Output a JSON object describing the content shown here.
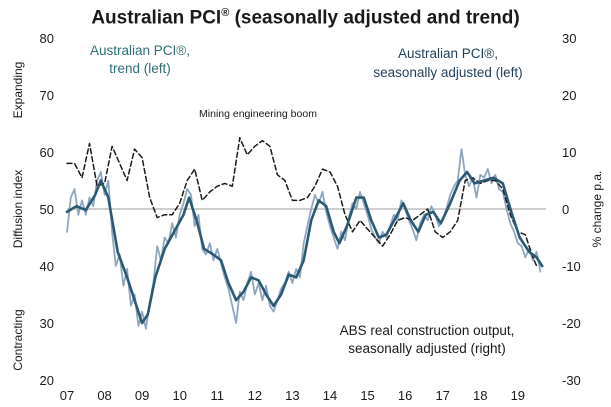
{
  "chart_data": {
    "type": "line",
    "title": "Australian PCI",
    "title_mark": "®",
    "title_suffix": " (seasonally adjusted and trend)",
    "left_axis": {
      "label": "Diffusion index",
      "ylim": [
        20,
        80
      ],
      "ticks": [
        "20",
        "30",
        "40",
        "50",
        "60",
        "70",
        "80"
      ],
      "upper_note": "Expanding",
      "lower_note": "Contracting"
    },
    "right_axis": {
      "label": "% change p.a.",
      "ylim": [
        -30,
        30
      ],
      "ticks": [
        "-30",
        "-20",
        "-10",
        "0",
        "10",
        "20",
        "30"
      ]
    },
    "x_ticks": [
      "07",
      "08",
      "09",
      "10",
      "11",
      "12",
      "13",
      "14",
      "15",
      "16",
      "17",
      "18",
      "19"
    ],
    "xlim": [
      2007.0,
      2019.75
    ],
    "reference_line": 50,
    "grid": false,
    "colors": {
      "trend": "#2a5a73",
      "seasonally_adjusted": "#8fa6c1",
      "construction_output": "#1a1a1a",
      "reference_line": "#b0b0b0"
    },
    "series": [
      {
        "name": "Australian PCI®, trend (left)",
        "axis": "left",
        "style": "solid",
        "points": [
          [
            2007.0,
            49.5
          ],
          [
            2007.25,
            50.5
          ],
          [
            2007.5,
            49.8
          ],
          [
            2007.75,
            52.5
          ],
          [
            2007.9,
            55.0
          ],
          [
            2008.1,
            52.0
          ],
          [
            2008.35,
            42.5
          ],
          [
            2008.6,
            38.0
          ],
          [
            2008.85,
            33.0
          ],
          [
            2009.0,
            30.0
          ],
          [
            2009.15,
            31.5
          ],
          [
            2009.35,
            38.0
          ],
          [
            2009.6,
            43.0
          ],
          [
            2009.85,
            46.0
          ],
          [
            2010.1,
            49.0
          ],
          [
            2010.25,
            52.0
          ],
          [
            2010.45,
            48.0
          ],
          [
            2010.65,
            43.0
          ],
          [
            2010.9,
            42.0
          ],
          [
            2011.1,
            41.0
          ],
          [
            2011.3,
            37.0
          ],
          [
            2011.5,
            34.0
          ],
          [
            2011.7,
            35.5
          ],
          [
            2011.9,
            38.0
          ],
          [
            2012.1,
            37.5
          ],
          [
            2012.3,
            35.0
          ],
          [
            2012.5,
            33.0
          ],
          [
            2012.7,
            35.0
          ],
          [
            2012.9,
            38.5
          ],
          [
            2013.1,
            38.0
          ],
          [
            2013.3,
            41.0
          ],
          [
            2013.5,
            48.0
          ],
          [
            2013.7,
            51.5
          ],
          [
            2013.9,
            50.5
          ],
          [
            2014.1,
            46.0
          ],
          [
            2014.25,
            44.0
          ],
          [
            2014.45,
            47.0
          ],
          [
            2014.7,
            52.0
          ],
          [
            2014.9,
            52.0
          ],
          [
            2015.1,
            48.0
          ],
          [
            2015.3,
            45.0
          ],
          [
            2015.5,
            45.5
          ],
          [
            2015.75,
            48.5
          ],
          [
            2015.95,
            51.0
          ],
          [
            2016.15,
            48.0
          ],
          [
            2016.35,
            46.0
          ],
          [
            2016.55,
            49.0
          ],
          [
            2016.75,
            49.5
          ],
          [
            2016.95,
            47.5
          ],
          [
            2017.2,
            51.0
          ],
          [
            2017.45,
            55.0
          ],
          [
            2017.65,
            56.5
          ],
          [
            2017.85,
            54.5
          ],
          [
            2018.1,
            55.0
          ],
          [
            2018.35,
            55.5
          ],
          [
            2018.6,
            54.5
          ],
          [
            2018.85,
            49.0
          ],
          [
            2019.05,
            45.0
          ],
          [
            2019.3,
            42.5
          ],
          [
            2019.5,
            41.5
          ],
          [
            2019.65,
            40.0
          ]
        ]
      },
      {
        "name": "Australian PCI®, seasonally adjusted (left)",
        "axis": "left",
        "style": "solid",
        "points": [
          [
            2007.0,
            46.0
          ],
          [
            2007.1,
            52.0
          ],
          [
            2007.2,
            53.5
          ],
          [
            2007.3,
            49.0
          ],
          [
            2007.4,
            51.5
          ],
          [
            2007.5,
            49.0
          ],
          [
            2007.6,
            52.0
          ],
          [
            2007.7,
            50.5
          ],
          [
            2007.8,
            55.0
          ],
          [
            2007.9,
            56.5
          ],
          [
            2008.0,
            52.5
          ],
          [
            2008.1,
            55.0
          ],
          [
            2008.2,
            46.0
          ],
          [
            2008.3,
            40.0
          ],
          [
            2008.4,
            42.0
          ],
          [
            2008.5,
            36.5
          ],
          [
            2008.6,
            39.5
          ],
          [
            2008.7,
            33.0
          ],
          [
            2008.8,
            35.0
          ],
          [
            2008.9,
            29.5
          ],
          [
            2009.0,
            32.0
          ],
          [
            2009.1,
            29.0
          ],
          [
            2009.2,
            33.5
          ],
          [
            2009.3,
            37.0
          ],
          [
            2009.4,
            43.5
          ],
          [
            2009.5,
            41.0
          ],
          [
            2009.6,
            45.0
          ],
          [
            2009.7,
            44.0
          ],
          [
            2009.8,
            47.5
          ],
          [
            2009.9,
            45.0
          ],
          [
            2010.0,
            49.0
          ],
          [
            2010.1,
            51.0
          ],
          [
            2010.2,
            53.5
          ],
          [
            2010.3,
            52.5
          ],
          [
            2010.4,
            47.0
          ],
          [
            2010.5,
            49.0
          ],
          [
            2010.6,
            43.0
          ],
          [
            2010.7,
            42.0
          ],
          [
            2010.8,
            44.0
          ],
          [
            2010.9,
            41.0
          ],
          [
            2011.0,
            43.0
          ],
          [
            2011.1,
            40.5
          ],
          [
            2011.2,
            38.0
          ],
          [
            2011.3,
            36.0
          ],
          [
            2011.4,
            33.0
          ],
          [
            2011.5,
            30.0
          ],
          [
            2011.6,
            35.5
          ],
          [
            2011.7,
            34.0
          ],
          [
            2011.8,
            37.0
          ],
          [
            2011.9,
            39.0
          ],
          [
            2012.0,
            35.0
          ],
          [
            2012.1,
            37.0
          ],
          [
            2012.2,
            34.0
          ],
          [
            2012.3,
            36.5
          ],
          [
            2012.4,
            33.0
          ],
          [
            2012.5,
            32.0
          ],
          [
            2012.6,
            34.0
          ],
          [
            2012.7,
            36.0
          ],
          [
            2012.8,
            37.0
          ],
          [
            2012.9,
            39.0
          ],
          [
            2013.0,
            37.0
          ],
          [
            2013.1,
            39.5
          ],
          [
            2013.2,
            38.0
          ],
          [
            2013.3,
            44.0
          ],
          [
            2013.4,
            47.0
          ],
          [
            2013.5,
            50.0
          ],
          [
            2013.6,
            52.5
          ],
          [
            2013.7,
            51.0
          ],
          [
            2013.8,
            53.0
          ],
          [
            2013.9,
            49.5
          ],
          [
            2014.0,
            47.0
          ],
          [
            2014.1,
            45.0
          ],
          [
            2014.2,
            43.0
          ],
          [
            2014.3,
            46.0
          ],
          [
            2014.4,
            44.5
          ],
          [
            2014.5,
            48.5
          ],
          [
            2014.6,
            51.0
          ],
          [
            2014.7,
            50.0
          ],
          [
            2014.8,
            53.0
          ],
          [
            2014.9,
            51.0
          ],
          [
            2015.0,
            49.0
          ],
          [
            2015.1,
            46.5
          ],
          [
            2015.2,
            45.0
          ],
          [
            2015.3,
            44.0
          ],
          [
            2015.4,
            46.0
          ],
          [
            2015.5,
            45.0
          ],
          [
            2015.6,
            47.0
          ],
          [
            2015.7,
            49.0
          ],
          [
            2015.8,
            48.0
          ],
          [
            2015.9,
            51.5
          ],
          [
            2016.0,
            50.0
          ],
          [
            2016.1,
            48.0
          ],
          [
            2016.2,
            46.5
          ],
          [
            2016.3,
            44.5
          ],
          [
            2016.4,
            47.5
          ],
          [
            2016.5,
            49.0
          ],
          [
            2016.6,
            48.0
          ],
          [
            2016.7,
            50.5
          ],
          [
            2016.8,
            49.0
          ],
          [
            2016.9,
            47.0
          ],
          [
            2017.0,
            48.0
          ],
          [
            2017.1,
            50.0
          ],
          [
            2017.2,
            52.5
          ],
          [
            2017.3,
            54.0
          ],
          [
            2017.4,
            55.0
          ],
          [
            2017.5,
            60.5
          ],
          [
            2017.6,
            56.0
          ],
          [
            2017.7,
            54.0
          ],
          [
            2017.8,
            55.5
          ],
          [
            2017.9,
            52.0
          ],
          [
            2018.0,
            56.0
          ],
          [
            2018.1,
            55.5
          ],
          [
            2018.2,
            57.0
          ],
          [
            2018.3,
            54.5
          ],
          [
            2018.4,
            56.0
          ],
          [
            2018.5,
            53.5
          ],
          [
            2018.6,
            53.0
          ],
          [
            2018.7,
            50.0
          ],
          [
            2018.8,
            47.5
          ],
          [
            2018.9,
            46.0
          ],
          [
            2019.0,
            44.0
          ],
          [
            2019.1,
            43.5
          ],
          [
            2019.2,
            41.5
          ],
          [
            2019.3,
            43.0
          ],
          [
            2019.4,
            41.0
          ],
          [
            2019.5,
            42.5
          ],
          [
            2019.6,
            39.0
          ]
        ]
      },
      {
        "name": "ABS real construction output, seasonally adjusted (right)",
        "axis": "right",
        "style": "dashed",
        "points": [
          [
            2007.0,
            8.0
          ],
          [
            2007.2,
            8.0
          ],
          [
            2007.4,
            5.5
          ],
          [
            2007.6,
            11.5
          ],
          [
            2007.8,
            4.0
          ],
          [
            2008.0,
            4.5
          ],
          [
            2008.2,
            11.0
          ],
          [
            2008.4,
            8.0
          ],
          [
            2008.6,
            5.0
          ],
          [
            2008.8,
            10.5
          ],
          [
            2009.0,
            9.0
          ],
          [
            2009.2,
            2.0
          ],
          [
            2009.4,
            -1.5
          ],
          [
            2009.6,
            -1.0
          ],
          [
            2009.8,
            -1.0
          ],
          [
            2010.0,
            1.0
          ],
          [
            2010.2,
            5.0
          ],
          [
            2010.4,
            7.0
          ],
          [
            2010.6,
            1.5
          ],
          [
            2010.8,
            3.0
          ],
          [
            2011.0,
            4.0
          ],
          [
            2011.2,
            4.5
          ],
          [
            2011.4,
            4.0
          ],
          [
            2011.6,
            12.5
          ],
          [
            2011.8,
            9.5
          ],
          [
            2012.0,
            11.0
          ],
          [
            2012.2,
            12.0
          ],
          [
            2012.4,
            11.0
          ],
          [
            2012.6,
            6.0
          ],
          [
            2012.8,
            5.0
          ],
          [
            2013.0,
            1.5
          ],
          [
            2013.2,
            1.5
          ],
          [
            2013.4,
            2.0
          ],
          [
            2013.6,
            4.0
          ],
          [
            2013.8,
            7.0
          ],
          [
            2014.0,
            6.5
          ],
          [
            2014.2,
            4.0
          ],
          [
            2014.4,
            -1.0
          ],
          [
            2014.6,
            -4.0
          ],
          [
            2014.8,
            -2.0
          ],
          [
            2015.0,
            -3.5
          ],
          [
            2015.2,
            -5.0
          ],
          [
            2015.4,
            -6.5
          ],
          [
            2015.6,
            -4.5
          ],
          [
            2015.8,
            -2.0
          ],
          [
            2016.0,
            -1.5
          ],
          [
            2016.2,
            -2.0
          ],
          [
            2016.4,
            -1.0
          ],
          [
            2016.6,
            0.0
          ],
          [
            2016.8,
            -4.0
          ],
          [
            2017.0,
            -5.0
          ],
          [
            2017.2,
            -4.0
          ],
          [
            2017.4,
            -2.0
          ],
          [
            2017.6,
            5.0
          ],
          [
            2017.8,
            5.5
          ],
          [
            2018.0,
            4.5
          ],
          [
            2018.2,
            5.0
          ],
          [
            2018.4,
            5.0
          ],
          [
            2018.6,
            3.5
          ],
          [
            2018.8,
            -1.0
          ],
          [
            2019.0,
            -4.0
          ],
          [
            2019.2,
            -4.5
          ],
          [
            2019.4,
            -8.5
          ],
          [
            2019.5,
            -10.0
          ]
        ]
      }
    ],
    "annotations": {
      "trend_label": [
        "Australian PCI®,",
        "trend (left)"
      ],
      "sa_label": [
        "Australian PCI®,",
        "seasonally adjusted (left)"
      ],
      "boom_label": "Mining engineering boom",
      "output_label": [
        "ABS real construction output,",
        "seasonally adjusted (right)"
      ]
    }
  }
}
